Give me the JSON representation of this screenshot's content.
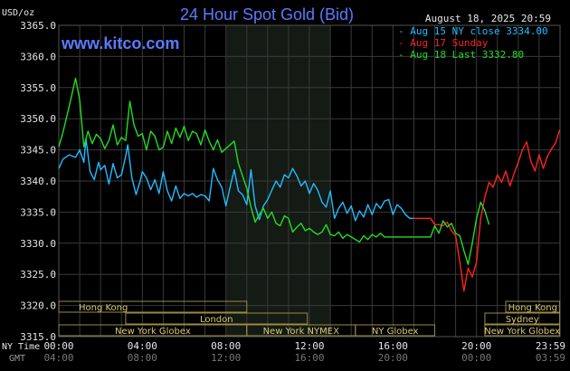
{
  "chart_data": {
    "type": "line",
    "title": "24 Hour Spot Gold (Bid)",
    "brand": "www.kitco.com",
    "date_label": "August 18, 2025 20:59",
    "ylabel": "USD/oz",
    "ylim": [
      3315,
      3365
    ],
    "yticks": [
      "3365.0",
      "3360.0",
      "3355.0",
      "3350.0",
      "3345.0",
      "3340.0",
      "3335.0",
      "3330.0",
      "3325.0",
      "3320.0",
      "3315.0"
    ],
    "x_range_hours": [
      0,
      24
    ],
    "xticks_ny": [
      "00:00",
      "04:00",
      "08:00",
      "12:00",
      "16:00",
      "20:00",
      "23:59"
    ],
    "xticks_gmt": [
      "04:00",
      "08:00",
      "12:00",
      "16:00",
      "20:00",
      "00:00",
      "03:59"
    ],
    "x_row_label_ny": "NY Time",
    "x_row_label_gmt": "GMT",
    "grid": true,
    "legend_position": "top-right",
    "series": [
      {
        "name": "Aug 15 NY close 3334.00",
        "color": "#22bbff",
        "x": [
          0.0,
          0.2,
          0.5,
          0.8,
          1.0,
          1.2,
          1.3,
          1.5,
          1.7,
          1.9,
          2.0,
          2.2,
          2.4,
          2.6,
          2.8,
          3.0,
          3.2,
          3.3,
          3.5,
          3.7,
          3.9,
          4.0,
          4.2,
          4.4,
          4.6,
          4.8,
          5.0,
          5.2,
          5.4,
          5.6,
          5.8,
          6.0,
          6.2,
          6.4,
          6.6,
          6.8,
          7.0,
          7.2,
          7.4,
          7.6,
          7.8,
          8.0,
          8.2,
          8.4,
          8.6,
          8.8,
          9.0,
          9.2,
          9.4,
          9.6,
          9.8,
          10.0,
          10.2,
          10.4,
          10.6,
          10.8,
          11.0,
          11.2,
          11.4,
          11.6,
          11.8,
          12.0,
          12.2,
          12.4,
          12.6,
          12.8,
          13.0,
          13.2,
          13.4,
          13.6,
          13.8,
          14.0,
          14.2,
          14.4,
          14.6,
          14.8,
          15.0,
          15.2,
          15.4,
          15.6,
          15.8,
          16.0,
          16.2,
          16.4,
          16.6,
          16.8,
          17.0
        ],
        "values": [
          3342.0,
          3343.5,
          3344.2,
          3343.8,
          3345.0,
          3343.0,
          3346.8,
          3341.5,
          3340.2,
          3343.0,
          3341.8,
          3342.5,
          3339.5,
          3342.8,
          3340.5,
          3341.0,
          3344.0,
          3345.8,
          3340.5,
          3337.8,
          3340.0,
          3341.5,
          3340.5,
          3338.6,
          3340.2,
          3338.0,
          3341.5,
          3338.4,
          3336.8,
          3339.2,
          3337.2,
          3338.0,
          3337.6,
          3338.0,
          3337.4,
          3337.8,
          3337.6,
          3336.8,
          3342.0,
          3340.2,
          3339.0,
          3336.0,
          3339.0,
          3341.8,
          3338.4,
          3337.8,
          3336.2,
          3341.8,
          3336.0,
          3333.8,
          3336.0,
          3337.0,
          3338.5,
          3340.0,
          3339.0,
          3341.0,
          3340.5,
          3342.0,
          3340.8,
          3339.2,
          3340.0,
          3338.0,
          3339.6,
          3338.5,
          3336.6,
          3335.8,
          3338.4,
          3334.0,
          3335.6,
          3336.6,
          3334.8,
          3336.0,
          3333.6,
          3335.2,
          3334.2,
          3336.2,
          3334.6,
          3336.4,
          3335.6,
          3336.8,
          3337.0,
          3334.6,
          3336.2,
          3335.6,
          3334.6,
          3334.0,
          3334.0
        ]
      },
      {
        "name": "Aug 17 Sunday",
        "color": "#ff2222",
        "x": [
          17.0,
          17.8,
          18.0,
          18.2,
          18.4,
          18.6,
          18.8,
          19.0,
          19.2,
          19.4,
          19.6,
          19.8,
          20.0,
          20.2,
          20.4,
          20.6,
          20.8,
          21.0,
          21.2,
          21.4,
          21.6,
          21.8,
          22.0,
          22.2,
          22.4,
          22.6,
          22.8,
          23.0,
          23.2,
          23.4,
          23.6,
          23.8,
          23.98
        ],
        "values": [
          3334.0,
          3334.0,
          3333.0,
          3333.0,
          3332.8,
          3333.4,
          3332.0,
          3331.2,
          3327.0,
          3322.3,
          3326.0,
          3324.6,
          3327.0,
          3334.0,
          3337.4,
          3339.8,
          3339.0,
          3341.0,
          3339.8,
          3341.6,
          3339.2,
          3341.2,
          3343.0,
          3345.0,
          3346.3,
          3343.2,
          3341.6,
          3344.2,
          3342.0,
          3344.0,
          3345.2,
          3346.2,
          3348.2
        ]
      },
      {
        "name": "Aug 18 Last 3332.80",
        "color": "#22dd22",
        "x": [
          0.0,
          0.2,
          0.5,
          0.8,
          1.0,
          1.2,
          1.4,
          1.6,
          1.8,
          2.0,
          2.2,
          2.4,
          2.6,
          2.8,
          3.0,
          3.2,
          3.4,
          3.6,
          3.8,
          4.0,
          4.2,
          4.4,
          4.6,
          4.8,
          5.0,
          5.2,
          5.4,
          5.6,
          5.8,
          6.0,
          6.2,
          6.4,
          6.6,
          6.8,
          7.0,
          7.2,
          7.4,
          7.6,
          7.8,
          8.0,
          8.2,
          8.4,
          8.6,
          8.8,
          9.0,
          9.2,
          9.4,
          9.6,
          9.8,
          10.0,
          10.2,
          10.4,
          10.6,
          10.8,
          11.0,
          11.2,
          11.4,
          11.6,
          11.8,
          12.0,
          12.2,
          12.4,
          12.6,
          12.8,
          13.0,
          13.2,
          13.4,
          13.6,
          13.8,
          14.0,
          14.2,
          14.4,
          14.6,
          14.8,
          15.0,
          15.2,
          15.4,
          15.6,
          15.8,
          16.0,
          16.2,
          16.4,
          16.6,
          16.8,
          17.0,
          17.2,
          17.4,
          17.6,
          17.8,
          18.0,
          18.2,
          18.4,
          18.6,
          18.8,
          19.0,
          19.2,
          19.4,
          19.6,
          19.8,
          20.0,
          20.2,
          20.4,
          20.6
        ],
        "values": [
          3345.5,
          3347.8,
          3352.0,
          3356.5,
          3353.0,
          3345.5,
          3348.0,
          3346.0,
          3347.5,
          3346.8,
          3345.2,
          3346.5,
          3349.0,
          3345.8,
          3347.0,
          3346.5,
          3352.8,
          3349.0,
          3347.2,
          3347.6,
          3345.0,
          3348.0,
          3347.2,
          3345.0,
          3345.4,
          3348.0,
          3346.0,
          3348.5,
          3347.0,
          3348.8,
          3346.5,
          3348.0,
          3347.6,
          3345.8,
          3348.2,
          3346.4,
          3345.0,
          3346.6,
          3344.6,
          3345.2,
          3345.8,
          3346.4,
          3342.8,
          3340.8,
          3338.8,
          3335.8,
          3333.4,
          3334.6,
          3335.6,
          3334.0,
          3335.0,
          3333.2,
          3332.8,
          3334.4,
          3334.0,
          3331.8,
          3332.6,
          3333.2,
          3332.0,
          3332.4,
          3331.8,
          3331.4,
          3331.8,
          3333.0,
          3331.4,
          3331.2,
          3331.8,
          3330.8,
          3331.4,
          3331.0,
          3330.6,
          3330.2,
          3331.2,
          3330.6,
          3331.4,
          3331.0,
          3331.6,
          3331.0,
          3331.0,
          3331.0,
          3331.0,
          3331.0,
          3331.0,
          3331.0,
          3331.0,
          3331.0,
          3331.0,
          3331.0,
          3331.0,
          3332.8,
          3331.6,
          3333.6,
          3332.6,
          3333.2,
          3331.6,
          3331.2,
          3328.8,
          3326.6,
          3330.0,
          3334.0,
          3336.6,
          3335.2,
          3333.0
        ]
      }
    ],
    "session_rows": [
      [
        {
          "label": "Hong Kong",
          "from": 0,
          "to": 9,
          "align": "left"
        },
        {
          "label": "Hong Kong",
          "from": 21.4,
          "to": 23.98,
          "align": "center"
        }
      ],
      [
        {
          "label": "London",
          "from": 3.2,
          "to": 11.9,
          "align": "center"
        },
        {
          "label": "Sydney",
          "from": 20.4,
          "to": 23.98,
          "align": "center"
        }
      ],
      [
        {
          "label": "New York Globex",
          "from": 0,
          "to": 9,
          "align": "center"
        },
        {
          "label": "New York NYMEX",
          "from": 9,
          "to": 14.2,
          "align": "center"
        },
        {
          "label": "NY Globex",
          "from": 14.2,
          "to": 18.0,
          "align": "center"
        },
        {
          "label": "New York Globex",
          "from": 20.4,
          "to": 23.98,
          "align": "center"
        }
      ]
    ],
    "shaded_hours": [
      8.0,
      13.0
    ]
  }
}
